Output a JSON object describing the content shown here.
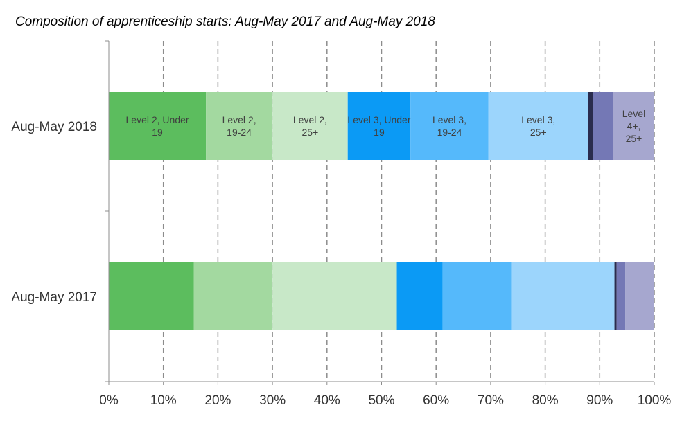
{
  "chart_data": {
    "type": "bar",
    "orientation": "horizontal",
    "stacked": "percent",
    "title": "Composition of apprenticeship starts: Aug-May 2017 and Aug-May 2018",
    "categories": [
      "Aug-May 2018",
      "Aug-May 2017"
    ],
    "xlim": [
      0,
      100
    ],
    "xticks": [
      "0%",
      "10%",
      "20%",
      "30%",
      "40%",
      "50%",
      "60%",
      "70%",
      "80%",
      "90%",
      "100%"
    ],
    "grid": "vertical-dashed",
    "series": [
      {
        "label": "Level 2, Under 19",
        "label_lines": [
          "Level 2, Under",
          "19"
        ],
        "color": "#5cbd5e",
        "values": [
          17.8,
          15.6
        ]
      },
      {
        "label": "Level 2, 19-24",
        "label_lines": [
          "Level 2,",
          "19-24"
        ],
        "color": "#a3d9a0",
        "values": [
          12.2,
          14.4
        ]
      },
      {
        "label": "Level 2, 25+",
        "label_lines": [
          "Level 2,",
          "25+"
        ],
        "color": "#c8e8c8",
        "values": [
          13.8,
          22.8
        ]
      },
      {
        "label": "Level 3, Under 19",
        "label_lines": [
          "Level 3, Under",
          "19"
        ],
        "color": "#0b9af5",
        "values": [
          11.5,
          8.4
        ]
      },
      {
        "label": "Level 3, 19-24",
        "label_lines": [
          "Level 3,",
          "19-24"
        ],
        "color": "#55b9fb",
        "values": [
          14.3,
          12.7
        ]
      },
      {
        "label": "Level 3, 25+",
        "label_lines": [
          "Level 3,",
          "25+"
        ],
        "color": "#9cd5fc",
        "values": [
          18.3,
          18.8
        ]
      },
      {
        "label": "",
        "label_lines": [],
        "color": "#2a2c4e",
        "values": [
          0.9,
          0.4
        ]
      },
      {
        "label": "",
        "label_lines": [],
        "color": "#7478b5",
        "values": [
          3.7,
          1.6
        ]
      },
      {
        "label": "Level 4+, 25+",
        "label_lines": [
          "Level",
          "4+,",
          "25+"
        ],
        "color": "#a6a7cf",
        "values": [
          7.5,
          5.3
        ]
      }
    ]
  }
}
